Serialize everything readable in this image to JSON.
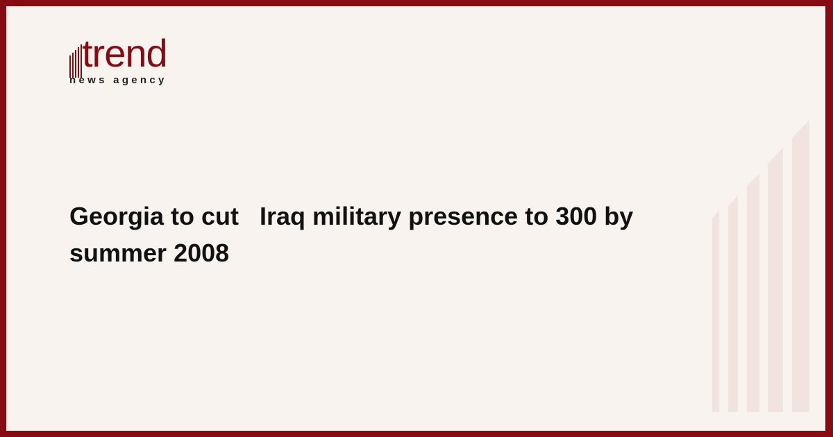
{
  "brand": {
    "name": "trend",
    "tagline": "news agency",
    "color": "#870b12"
  },
  "article": {
    "title": "Georgia to cut   Iraq military presence to 300 by summer 2008"
  },
  "colors": {
    "background": "#f8f3ee",
    "border": "#870b12",
    "decoration": "#f1e3df"
  }
}
